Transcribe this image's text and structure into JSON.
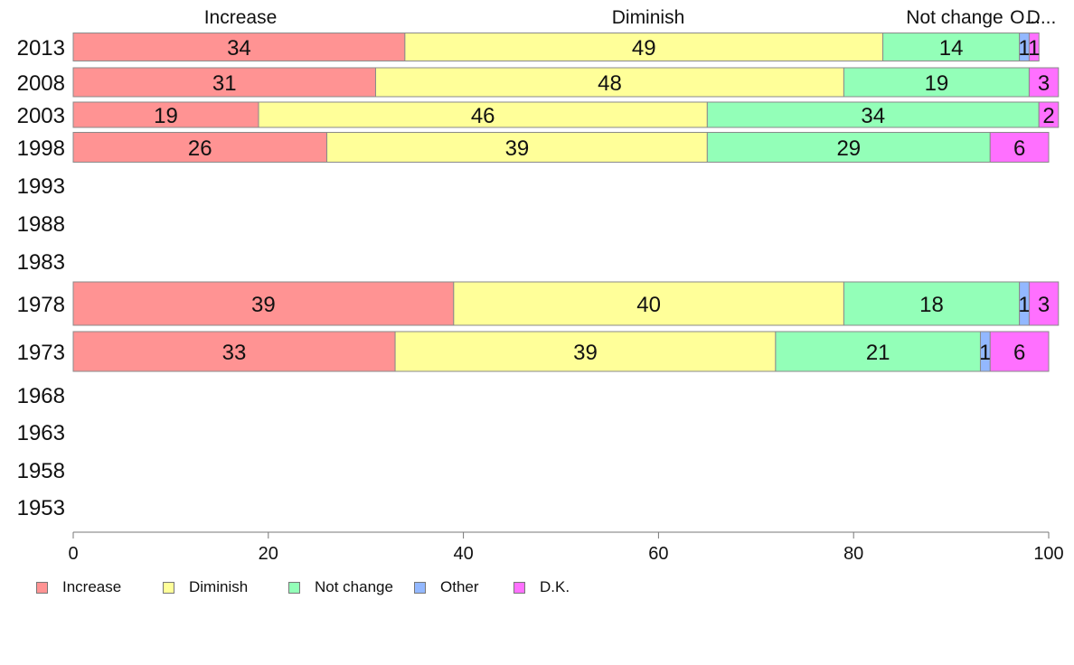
{
  "chart_data": {
    "type": "bar",
    "orientation": "horizontal",
    "stacked": true,
    "categories": [
      "2013",
      "2008",
      "2003",
      "1998",
      "1993",
      "1988",
      "1983",
      "1978",
      "1973",
      "1968",
      "1963",
      "1958",
      "1953"
    ],
    "series": [
      {
        "name": "Increase",
        "color": "#ff9393",
        "values": [
          34,
          31,
          19,
          26,
          null,
          null,
          null,
          39,
          33,
          null,
          null,
          null,
          null
        ]
      },
      {
        "name": "Diminish",
        "color": "#ffff99",
        "values": [
          49,
          48,
          46,
          39,
          null,
          null,
          null,
          40,
          39,
          null,
          null,
          null,
          null
        ]
      },
      {
        "name": "Not change",
        "color": "#93ffb8",
        "values": [
          14,
          19,
          34,
          29,
          null,
          null,
          null,
          18,
          21,
          null,
          null,
          null,
          null
        ]
      },
      {
        "name": "Other",
        "color": "#93b8ff",
        "values": [
          1,
          0,
          0,
          0,
          null,
          null,
          null,
          1,
          1,
          null,
          null,
          null,
          null
        ]
      },
      {
        "name": "D.K.",
        "color": "#ff70ff",
        "values": [
          1,
          3,
          2,
          6,
          null,
          null,
          null,
          3,
          6,
          null,
          null,
          null,
          null
        ]
      }
    ],
    "column_headers": [
      "Increase",
      "Diminish",
      "Not change",
      "O...",
      "D..."
    ],
    "xlim": [
      0,
      100
    ],
    "xticks": [
      "0",
      "20",
      "40",
      "60",
      "80",
      "100"
    ],
    "grid": false,
    "legend_position": "bottom-left"
  }
}
